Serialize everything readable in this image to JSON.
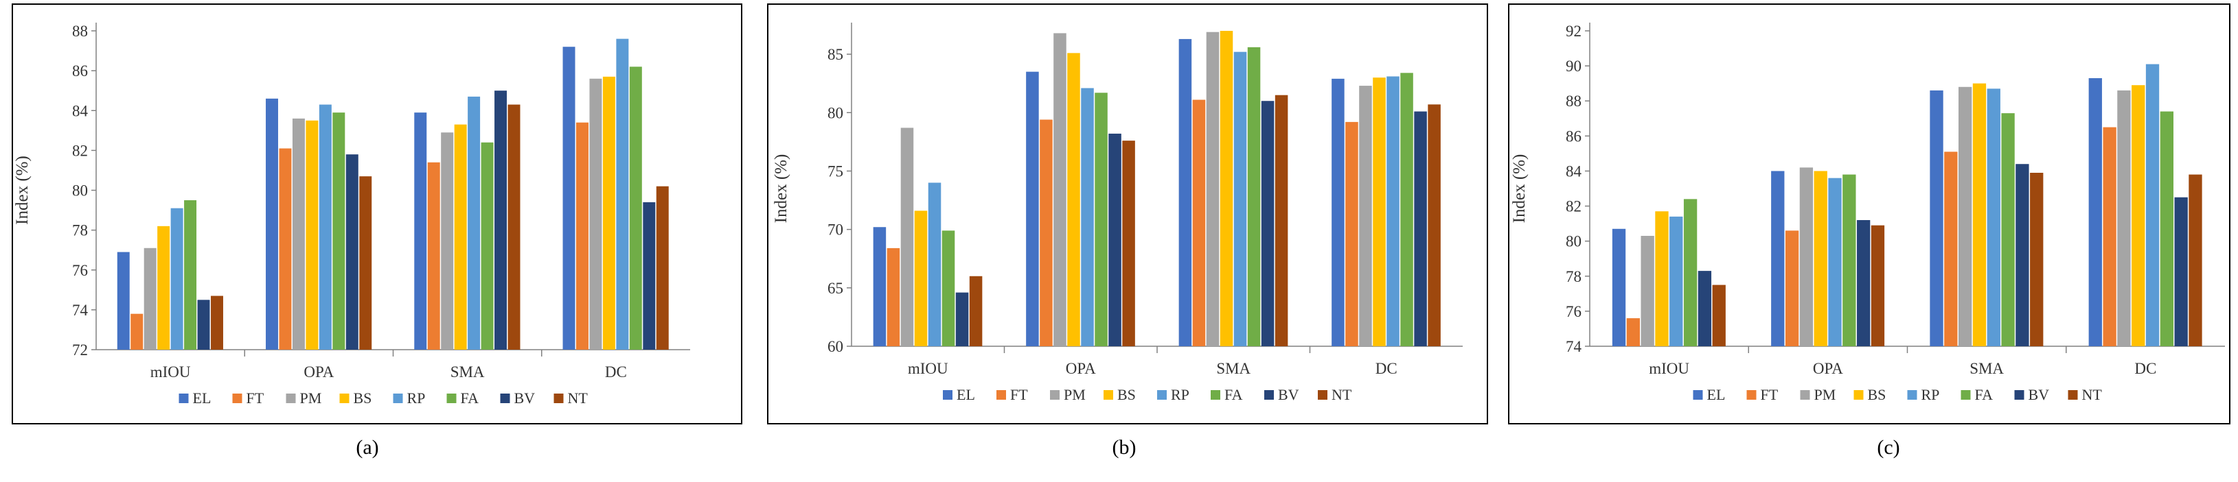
{
  "colors": [
    "#4472c4",
    "#ed7d31",
    "#a5a5a5",
    "#ffc000",
    "#5b9bd5",
    "#70ad47",
    "#264478",
    "#9e480e"
  ],
  "chart_data": [
    {
      "type": "bar",
      "caption": "(a)",
      "ylabel": "Index (%)",
      "ylim": [
        72,
        88
      ],
      "yticks": [
        72,
        74,
        76,
        78,
        80,
        82,
        84,
        86,
        88
      ],
      "categories": [
        "mIOU",
        "OPA",
        "SMA",
        "DC"
      ],
      "legend_position": "bottom",
      "grid": false,
      "series": [
        {
          "name": "EL",
          "values": [
            76.9,
            84.6,
            83.9,
            87.2
          ]
        },
        {
          "name": "FT",
          "values": [
            73.8,
            82.1,
            81.4,
            83.4
          ]
        },
        {
          "name": "PM",
          "values": [
            77.1,
            83.6,
            82.9,
            85.6
          ]
        },
        {
          "name": "BS",
          "values": [
            78.2,
            83.5,
            83.3,
            85.7
          ]
        },
        {
          "name": "RP",
          "values": [
            79.1,
            84.3,
            84.7,
            87.6
          ]
        },
        {
          "name": "FA",
          "values": [
            79.5,
            83.9,
            82.4,
            86.2
          ]
        },
        {
          "name": "BV",
          "values": [
            74.5,
            81.8,
            85.0,
            79.4
          ]
        },
        {
          "name": "NT",
          "values": [
            74.7,
            80.7,
            84.3,
            80.2
          ]
        }
      ]
    },
    {
      "type": "bar",
      "caption": "(b)",
      "ylabel": "Index (%)",
      "ylim": [
        60,
        87
      ],
      "yticks": [
        60,
        65,
        70,
        75,
        80,
        85
      ],
      "categories": [
        "mIOU",
        "OPA",
        "SMA",
        "DC"
      ],
      "legend_position": "bottom",
      "grid": false,
      "series": [
        {
          "name": "EL",
          "values": [
            70.2,
            83.5,
            86.3,
            82.9
          ]
        },
        {
          "name": "FT",
          "values": [
            68.4,
            79.4,
            81.1,
            79.2
          ]
        },
        {
          "name": "PM",
          "values": [
            78.7,
            86.8,
            86.9,
            82.3
          ]
        },
        {
          "name": "BS",
          "values": [
            71.6,
            85.1,
            87.0,
            83.0
          ]
        },
        {
          "name": "RP",
          "values": [
            74.0,
            82.1,
            85.2,
            83.1
          ]
        },
        {
          "name": "FA",
          "values": [
            69.9,
            81.7,
            85.6,
            83.4
          ]
        },
        {
          "name": "BV",
          "values": [
            64.6,
            78.2,
            81.0,
            80.1
          ]
        },
        {
          "name": "NT",
          "values": [
            66.0,
            77.6,
            81.5,
            80.7
          ]
        }
      ]
    },
    {
      "type": "bar",
      "caption": "(c)",
      "ylabel": "Index (%)",
      "ylim": [
        74,
        92
      ],
      "yticks": [
        74,
        76,
        78,
        80,
        82,
        84,
        86,
        88,
        90,
        92
      ],
      "categories": [
        "mIOU",
        "OPA",
        "SMA",
        "DC"
      ],
      "legend_position": "bottom",
      "grid": false,
      "series": [
        {
          "name": "EL",
          "values": [
            80.7,
            84.0,
            88.6,
            89.3
          ]
        },
        {
          "name": "FT",
          "values": [
            75.6,
            80.6,
            85.1,
            86.5
          ]
        },
        {
          "name": "PM",
          "values": [
            80.3,
            84.2,
            88.8,
            88.6
          ]
        },
        {
          "name": "BS",
          "values": [
            81.7,
            84.0,
            89.0,
            88.9
          ]
        },
        {
          "name": "RP",
          "values": [
            81.4,
            83.6,
            88.7,
            90.1
          ]
        },
        {
          "name": "FA",
          "values": [
            82.4,
            83.8,
            87.3,
            87.4
          ]
        },
        {
          "name": "BV",
          "values": [
            78.3,
            81.2,
            84.4,
            82.5
          ]
        },
        {
          "name": "NT",
          "values": [
            77.5,
            80.9,
            83.9,
            83.8
          ]
        }
      ]
    }
  ]
}
